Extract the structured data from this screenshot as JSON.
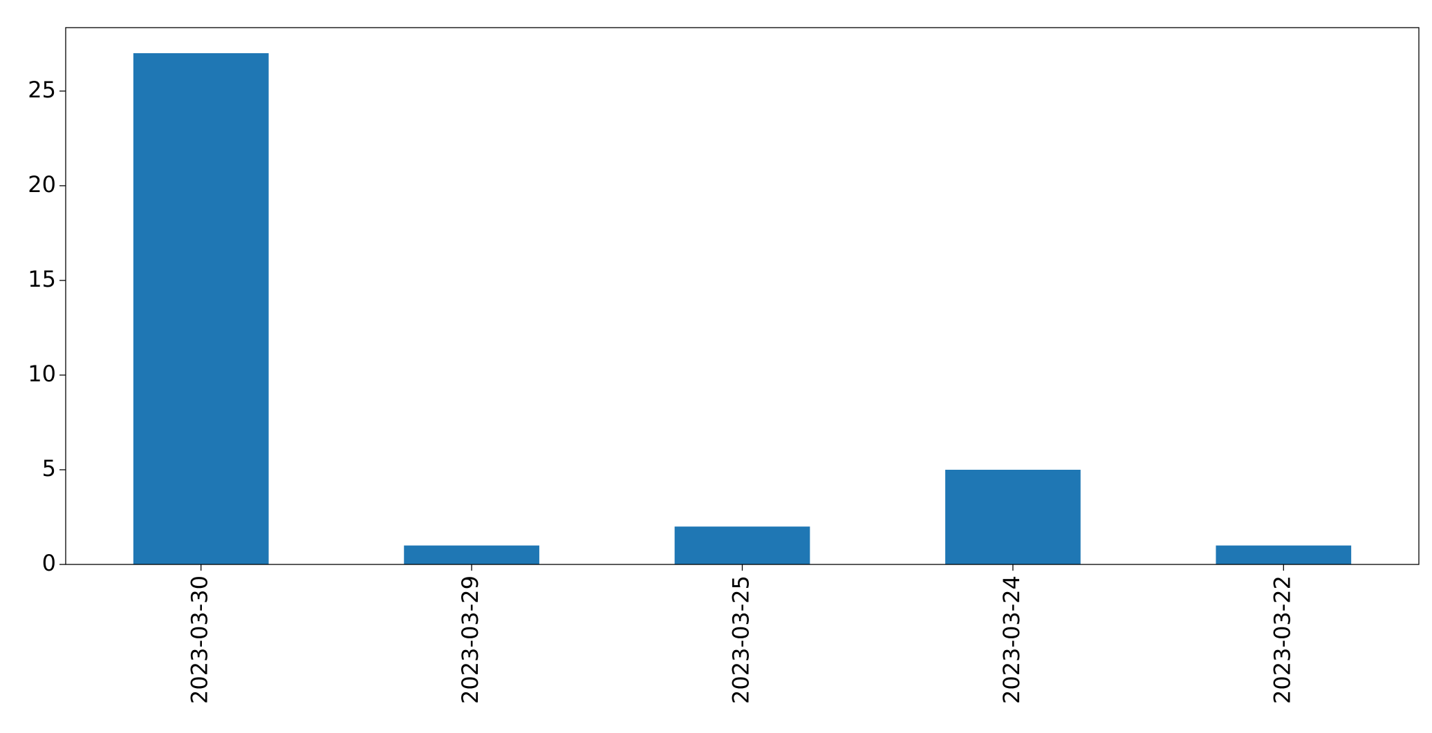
{
  "chart_data": {
    "type": "bar",
    "categories": [
      "2023-03-30",
      "2023-03-29",
      "2023-03-25",
      "2023-03-24",
      "2023-03-22"
    ],
    "values": [
      27,
      1,
      2,
      5,
      1
    ],
    "color": "#1f77b4",
    "ylim": [
      0,
      28.35
    ],
    "yticks": [
      0,
      5,
      10,
      15,
      20,
      25
    ],
    "grid": false
  }
}
